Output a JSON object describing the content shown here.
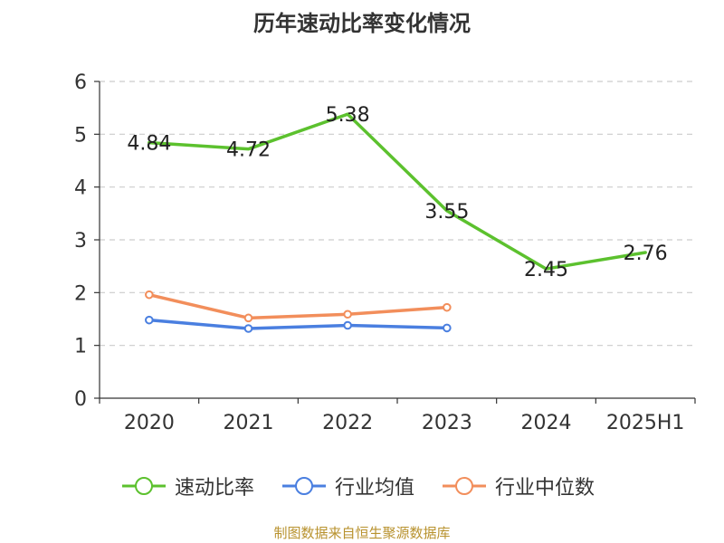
{
  "chart_data": {
    "type": "line",
    "title": "历年速动比率变化情况",
    "categories": [
      "2020",
      "2021",
      "2022",
      "2023",
      "2024",
      "2025H1"
    ],
    "ylim": [
      0,
      6
    ],
    "yticks": [
      0,
      1,
      2,
      3,
      4,
      5,
      6
    ],
    "grid": true,
    "legend_position": "bottom",
    "series": [
      {
        "name": "速动比率",
        "color": "#5cc12e",
        "values": [
          4.84,
          4.72,
          5.38,
          3.55,
          2.45,
          2.76
        ],
        "data_labels": [
          "4.84",
          "4.72",
          "5.38",
          "3.55",
          "2.45",
          "2.76"
        ],
        "markers": false
      },
      {
        "name": "行业均值",
        "color": "#4a7fe0",
        "values": [
          1.48,
          1.32,
          1.38,
          1.33,
          null,
          null
        ],
        "markers": true
      },
      {
        "name": "行业中位数",
        "color": "#f28e5b",
        "values": [
          1.96,
          1.52,
          1.59,
          1.72,
          null,
          null
        ],
        "markers": true
      }
    ]
  },
  "source": "制图数据来自恒生聚源数据库"
}
